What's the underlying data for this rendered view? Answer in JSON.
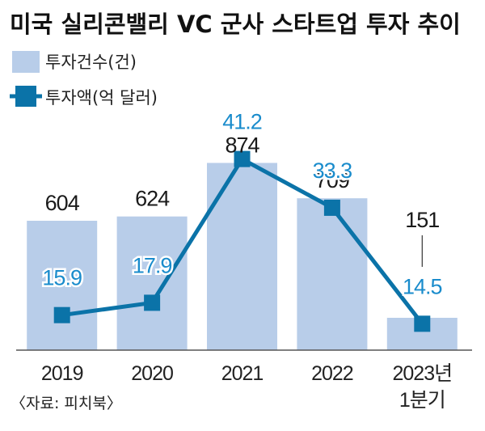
{
  "title": "미국 실리콘밸리 VC 군사 스타트업 투자 추이",
  "source": "〈자료: 피치북〉",
  "colors": {
    "bar": "#b8cde9",
    "line": "#0b73a8",
    "line_label": "#1a8ccc",
    "text": "#1a1a1a"
  },
  "chart_data": {
    "type": "bar+line",
    "categories": [
      {
        "line1": "2019",
        "line2": ""
      },
      {
        "line1": "2020",
        "line2": ""
      },
      {
        "line1": "2021",
        "line2": ""
      },
      {
        "line1": "2022",
        "line2": ""
      },
      {
        "line1": "2023년",
        "line2": "1분기"
      }
    ],
    "series": [
      {
        "name": "투자건수(건)",
        "type": "bar",
        "values": [
          604,
          624,
          874,
          709,
          151
        ],
        "labels": [
          "604",
          "624",
          "874",
          "709",
          "151"
        ]
      },
      {
        "name": "투자액(억 달러)",
        "type": "line",
        "values": [
          15.9,
          17.9,
          41.2,
          33.3,
          14.5
        ],
        "labels": [
          "15.9",
          "17.9",
          "41.2",
          "33.3",
          "14.5"
        ]
      }
    ],
    "bar_ylim": [
      0,
      1000
    ],
    "line_ylim": [
      0,
      50
    ],
    "legend": "top-left",
    "grid": false
  }
}
